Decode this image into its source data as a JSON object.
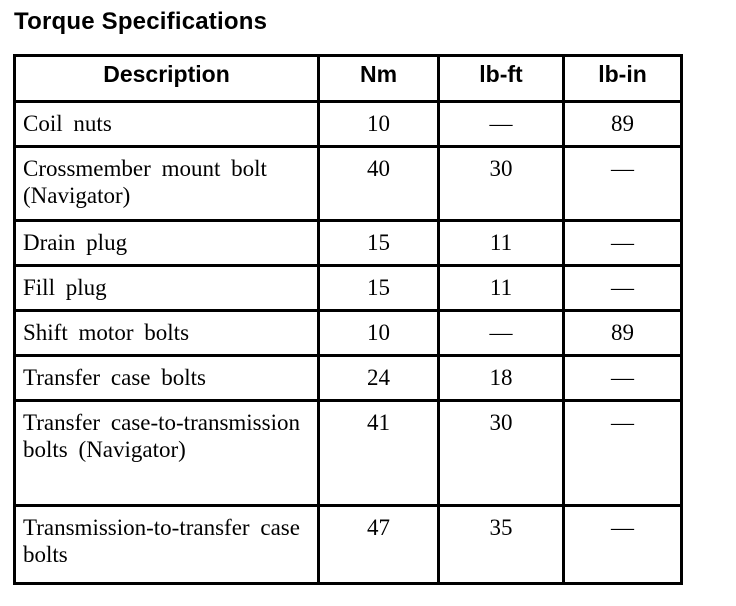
{
  "title": "Torque Specifications",
  "colors": {
    "border": "#000000",
    "background": "#ffffff",
    "text": "#000000"
  },
  "table": {
    "columns": [
      {
        "label": "Description"
      },
      {
        "label": "Nm"
      },
      {
        "label": "lb-ft"
      },
      {
        "label": "lb-in"
      }
    ],
    "rows": [
      {
        "description": "Coil nuts",
        "nm": "10",
        "lb_ft": "—",
        "lb_in": "89"
      },
      {
        "description": "Crossmember mount bolt (Navigator)",
        "nm": "40",
        "lb_ft": "30",
        "lb_in": "—"
      },
      {
        "description": "Drain plug",
        "nm": "15",
        "lb_ft": "11",
        "lb_in": "—"
      },
      {
        "description": "Fill plug",
        "nm": "15",
        "lb_ft": "11",
        "lb_in": "—"
      },
      {
        "description": "Shift motor bolts",
        "nm": "10",
        "lb_ft": "—",
        "lb_in": "89"
      },
      {
        "description": "Transfer case bolts",
        "nm": "24",
        "lb_ft": "18",
        "lb_in": "—"
      },
      {
        "description": "Transfer case-to-transmission bolts (Navigator)",
        "nm": "41",
        "lb_ft": "30",
        "lb_in": "—"
      },
      {
        "description": "Transmission-to-transfer case bolts",
        "nm": "47",
        "lb_ft": "35",
        "lb_in": "—"
      }
    ]
  }
}
